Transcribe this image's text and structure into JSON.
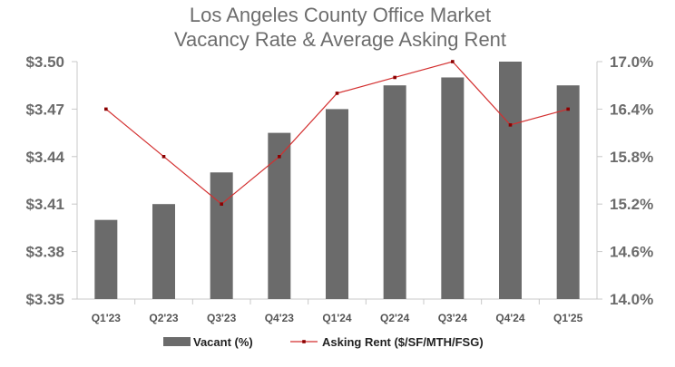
{
  "chart_data": {
    "type": "bar+line",
    "title": [
      "Los Angeles County Office Market",
      "Vacancy Rate & Average Asking Rent"
    ],
    "categories": [
      "Q1'23",
      "Q2'23",
      "Q3'23",
      "Q4'23",
      "Q1'24",
      "Q2'24",
      "Q3'24",
      "Q4'24",
      "Q1'25"
    ],
    "left_axis": {
      "ticks": [
        "$3.50",
        "$3.47",
        "$3.44",
        "$3.41",
        "$3.38",
        "$3.35"
      ],
      "range": [
        3.35,
        3.5
      ]
    },
    "right_axis": {
      "ticks": [
        "17.0%",
        "16.4%",
        "15.8%",
        "15.2%",
        "14.6%",
        "14.0%"
      ],
      "range": [
        14.0,
        17.0
      ]
    },
    "series": [
      {
        "name": "Vacant (%)",
        "type": "bar",
        "axis": "right",
        "color": "#6b6b6b",
        "values": [
          15.0,
          15.2,
          15.6,
          16.1,
          16.4,
          16.7,
          16.8,
          17.0,
          16.7
        ]
      },
      {
        "name": "Asking Rent ($/SF/MTH/FSG)",
        "type": "line",
        "axis": "left",
        "color": "#d32f2f",
        "values": [
          3.47,
          3.44,
          3.41,
          3.44,
          3.48,
          3.49,
          3.5,
          3.46,
          3.47
        ]
      }
    ],
    "legend_position": "bottom"
  }
}
